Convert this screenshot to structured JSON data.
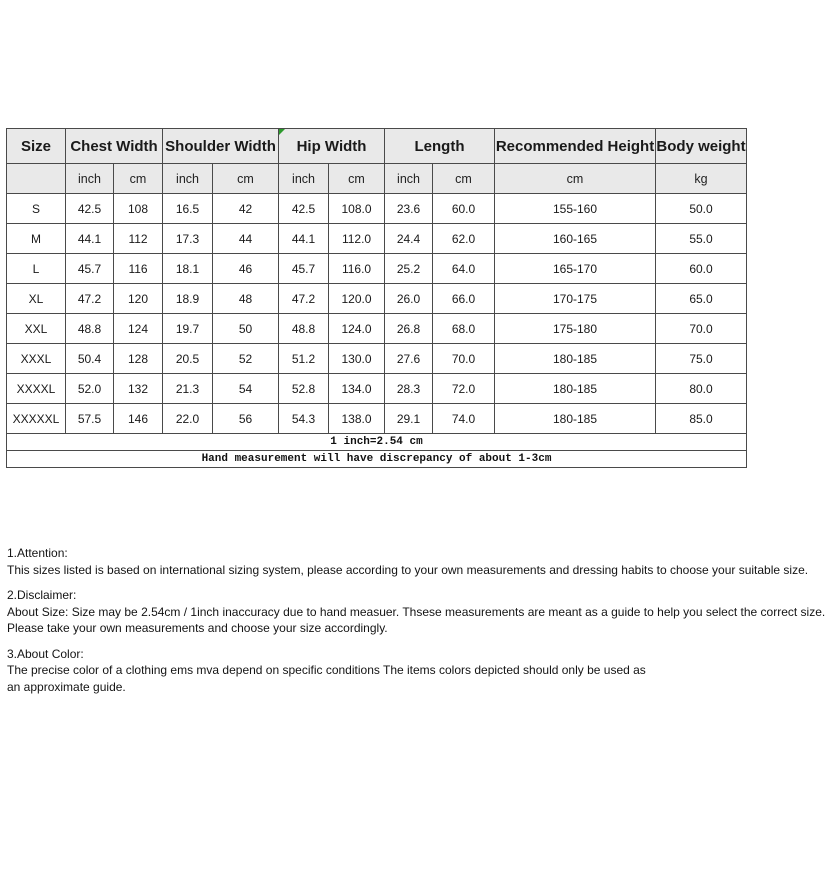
{
  "colors": {
    "header_bg": "#e9e9e9",
    "table_border": "#4a4a4a",
    "corner_marker_green": "#2c9a2c",
    "text": "#1a1a1a"
  },
  "chart_data": {
    "type": "table",
    "group_headers": [
      "Size",
      "Chest Width",
      "Shoulder Width",
      "Hip Width",
      "Length",
      "Recommended Height",
      "Body weight"
    ],
    "unit_headers": [
      "",
      "inch",
      "cm",
      "inch",
      "cm",
      "inch",
      "cm",
      "inch",
      "cm",
      "cm",
      "kg"
    ],
    "rows": [
      [
        "S",
        "42.5",
        "108",
        "16.5",
        "42",
        "42.5",
        "108.0",
        "23.6",
        "60.0",
        "155-160",
        "50.0"
      ],
      [
        "M",
        "44.1",
        "112",
        "17.3",
        "44",
        "44.1",
        "112.0",
        "24.4",
        "62.0",
        "160-165",
        "55.0"
      ],
      [
        "L",
        "45.7",
        "116",
        "18.1",
        "46",
        "45.7",
        "116.0",
        "25.2",
        "64.0",
        "165-170",
        "60.0"
      ],
      [
        "XL",
        "47.2",
        "120",
        "18.9",
        "48",
        "47.2",
        "120.0",
        "26.0",
        "66.0",
        "170-175",
        "65.0"
      ],
      [
        "XXL",
        "48.8",
        "124",
        "19.7",
        "50",
        "48.8",
        "124.0",
        "26.8",
        "68.0",
        "175-180",
        "70.0"
      ],
      [
        "XXXL",
        "50.4",
        "128",
        "20.5",
        "52",
        "51.2",
        "130.0",
        "27.6",
        "70.0",
        "180-185",
        "75.0"
      ],
      [
        "XXXXL",
        "52.0",
        "132",
        "21.3",
        "54",
        "52.8",
        "134.0",
        "28.3",
        "72.0",
        "180-185",
        "80.0"
      ],
      [
        "XXXXXL",
        "57.5",
        "146",
        "22.0",
        "56",
        "54.3",
        "138.0",
        "29.1",
        "74.0",
        "180-185",
        "85.0"
      ]
    ],
    "footnotes": [
      "1 inch=2.54 cm",
      "Hand measurement will have discrepancy of about 1-3cm"
    ]
  },
  "notes": {
    "attention": {
      "heading": "1.Attention:",
      "line1": "This sizes listed is based on international sizing system, please according to your own measurements and dressing habits to choose your suitable size."
    },
    "disclaimer": {
      "heading": "2.Disclaimer:",
      "line1": "About Size: Size may be 2.54cm / 1inch inaccuracy due to hand measuer. Thsese measurements are meant as a guide to help you select the correct size.",
      "line2": "Please take your own measurements and choose your size accordingly."
    },
    "about_color": {
      "heading": "3.About Color:",
      "line1": "The precise color of a clothing ems mva depend on specific conditions The items colors depicted should only be used as",
      "line2": "an approximate guide."
    }
  }
}
